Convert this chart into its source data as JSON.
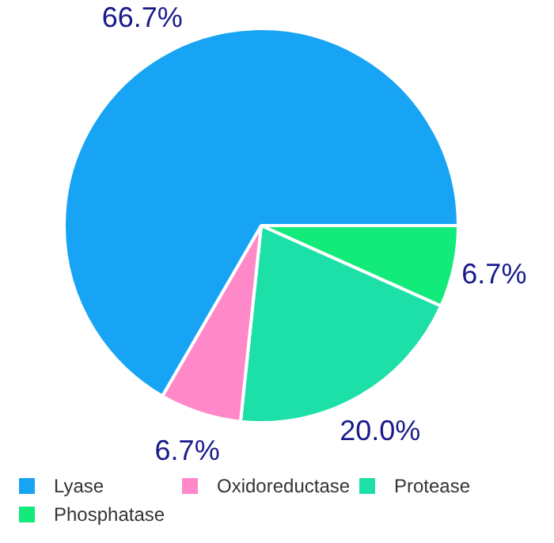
{
  "chart_data": {
    "type": "pie",
    "categories": [
      "Lyase",
      "Oxidoreductase",
      "Protease",
      "Phosphatase"
    ],
    "values": [
      66.7,
      6.7,
      20.0,
      6.7
    ],
    "colors": [
      "#18a4f4",
      "#ff88c8",
      "#1de0a8",
      "#12ea7a"
    ],
    "value_labels": [
      "66.7%",
      "6.7%",
      "20.0%",
      "6.7%"
    ],
    "legend": "bottom"
  }
}
